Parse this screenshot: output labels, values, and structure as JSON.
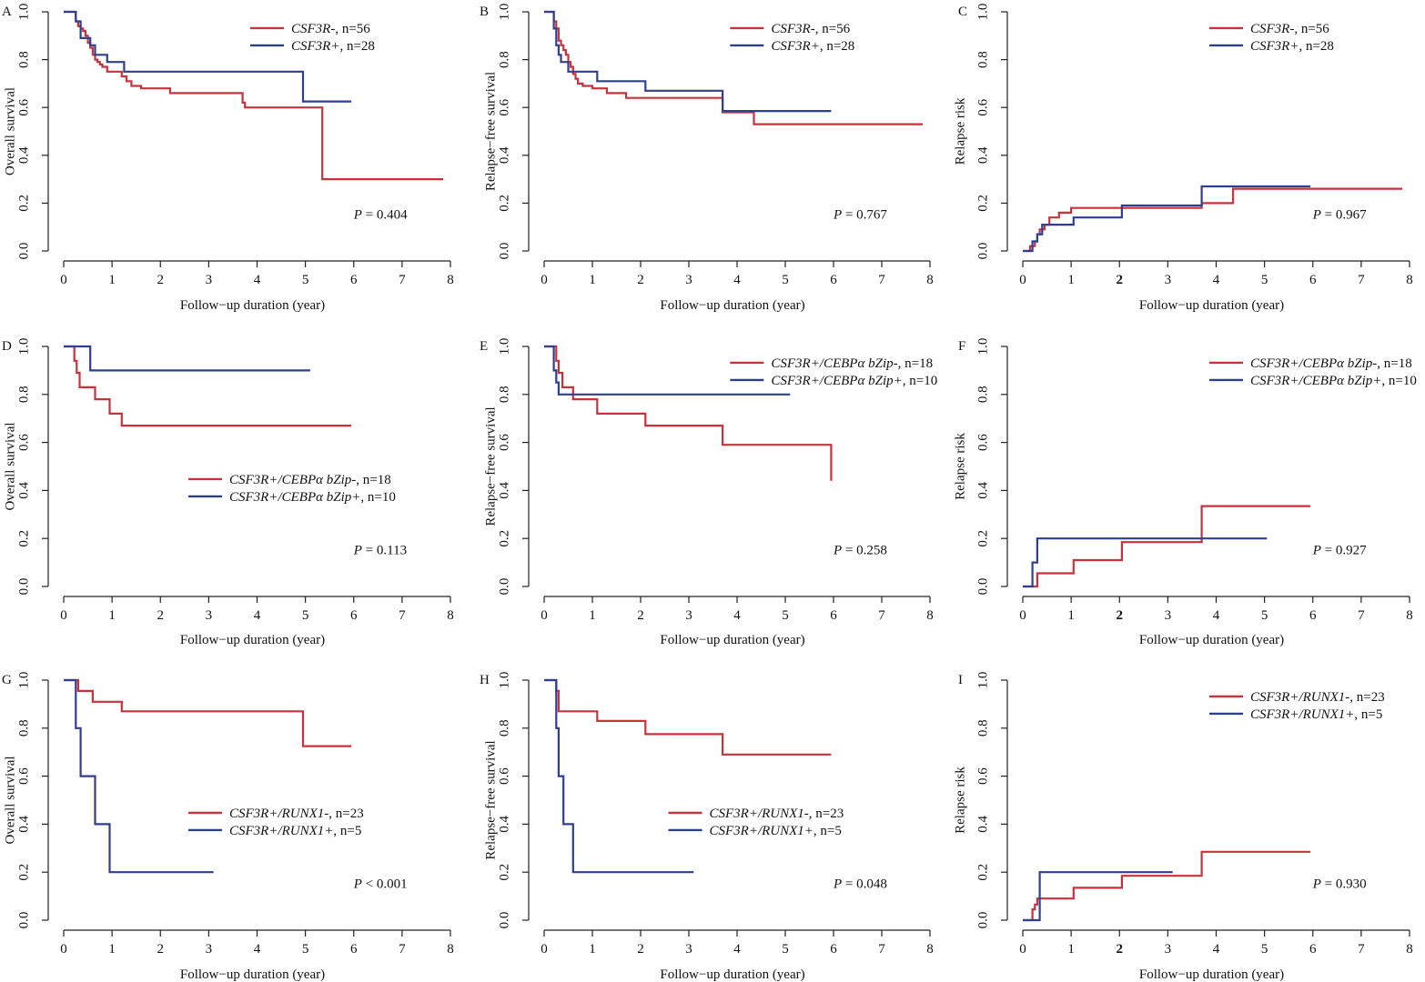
{
  "figure": {
    "colors": {
      "red": "#c8323c",
      "blue": "#2e3f8f",
      "axis": "#222222"
    },
    "xlabel": "Follow−up duration (year)",
    "x_ticks": [
      "0",
      "1",
      "2",
      "3",
      "4",
      "5",
      "6",
      "7",
      "8"
    ],
    "y_ticks": [
      "0.0",
      "0.2",
      "0.4",
      "0.6",
      "0.8",
      "1.0"
    ]
  },
  "chart_data": [
    {
      "panel": "A",
      "type": "line",
      "ylabel": "Overall survival",
      "xlim": [
        0,
        8
      ],
      "ylim": [
        0,
        1
      ],
      "legend_position": "top-right",
      "pvalue": {
        "label": "P",
        "op": " = ",
        "value": "0.404"
      },
      "series": [
        {
          "name": "CSF3R-,",
          "n": "n=56",
          "color": "red",
          "x": [
            0,
            0.25,
            0.3,
            0.35,
            0.4,
            0.45,
            0.5,
            0.55,
            0.6,
            0.65,
            0.7,
            0.75,
            0.8,
            0.9,
            1.2,
            1.3,
            1.4,
            1.6,
            2.2,
            3.7,
            3.75,
            5.35,
            7.85
          ],
          "y": [
            1.0,
            0.96,
            0.94,
            0.93,
            0.92,
            0.9,
            0.87,
            0.85,
            0.82,
            0.8,
            0.79,
            0.78,
            0.77,
            0.75,
            0.73,
            0.71,
            0.69,
            0.68,
            0.66,
            0.62,
            0.6,
            0.3,
            0.3
          ]
        },
        {
          "name": "CSF3R+,",
          "n": "n=28",
          "color": "blue",
          "x": [
            0,
            0.25,
            0.35,
            0.55,
            0.65,
            0.9,
            1.25,
            4.95,
            5.95
          ],
          "y": [
            1.0,
            0.96,
            0.89,
            0.86,
            0.82,
            0.79,
            0.75,
            0.625,
            0.625
          ]
        }
      ]
    },
    {
      "panel": "B",
      "type": "line",
      "ylabel": "Relapse−free survival",
      "xlim": [
        0,
        8
      ],
      "ylim": [
        0,
        1
      ],
      "legend_position": "top-right",
      "pvalue": {
        "label": "P",
        "op": " = ",
        "value": "0.767"
      },
      "series": [
        {
          "name": "CSF3R-,",
          "n": "n=56",
          "color": "red",
          "x": [
            0,
            0.2,
            0.25,
            0.3,
            0.35,
            0.4,
            0.45,
            0.5,
            0.55,
            0.6,
            0.65,
            0.7,
            0.8,
            1.0,
            1.3,
            1.7,
            3.7,
            4.35,
            7.85
          ],
          "y": [
            1.0,
            0.96,
            0.93,
            0.88,
            0.86,
            0.84,
            0.82,
            0.79,
            0.77,
            0.74,
            0.72,
            0.7,
            0.69,
            0.68,
            0.66,
            0.64,
            0.58,
            0.53,
            0.53
          ]
        },
        {
          "name": "CSF3R+,",
          "n": "n=28",
          "color": "blue",
          "x": [
            0,
            0.2,
            0.25,
            0.3,
            0.35,
            0.5,
            0.6,
            1.1,
            2.1,
            3.7,
            5.95
          ],
          "y": [
            1.0,
            0.93,
            0.86,
            0.82,
            0.79,
            0.75,
            0.75,
            0.71,
            0.67,
            0.585,
            0.585
          ]
        }
      ]
    },
    {
      "panel": "C",
      "type": "line",
      "ylabel": "Relapse risk",
      "xlim": [
        0,
        8
      ],
      "ylim": [
        0,
        1
      ],
      "legend_position": "top-right",
      "pvalue": {
        "label": "P",
        "op": " = ",
        "value": "0.967"
      },
      "series": [
        {
          "name": "CSF3R-,",
          "n": "n=56",
          "color": "red",
          "x": [
            0,
            0.15,
            0.25,
            0.3,
            0.35,
            0.45,
            0.55,
            0.75,
            0.9,
            1.0,
            3.7,
            4.35,
            7.85
          ],
          "y": [
            0.0,
            0.02,
            0.04,
            0.07,
            0.09,
            0.11,
            0.14,
            0.16,
            0.16,
            0.18,
            0.2,
            0.26,
            0.26
          ]
        },
        {
          "name": "CSF3R+,",
          "n": "n=28",
          "color": "blue",
          "x": [
            0,
            0.2,
            0.3,
            0.4,
            1.05,
            2.05,
            3.7,
            5.95
          ],
          "y": [
            0.0,
            0.04,
            0.07,
            0.11,
            0.14,
            0.19,
            0.27,
            0.27
          ]
        }
      ]
    },
    {
      "panel": "D",
      "type": "line",
      "ylabel": "Overall survival",
      "xlim": [
        0,
        8
      ],
      "ylim": [
        0,
        1
      ],
      "legend_position": "center-right",
      "pvalue": {
        "label": "P",
        "op": " = ",
        "value": "0.113"
      },
      "series": [
        {
          "name": "CSF3R+/CEBPα bZip-,",
          "n": "n=18",
          "color": "red",
          "x": [
            0,
            0.22,
            0.27,
            0.33,
            0.65,
            0.95,
            1.2,
            5.95
          ],
          "y": [
            1.0,
            0.94,
            0.89,
            0.83,
            0.78,
            0.72,
            0.67,
            0.67
          ]
        },
        {
          "name": "CSF3R+/CEBPα bZip+,",
          "n": "n=10",
          "color": "blue",
          "x": [
            0,
            0.55,
            5.1
          ],
          "y": [
            1.0,
            0.9,
            0.9
          ]
        }
      ]
    },
    {
      "panel": "E",
      "type": "line",
      "ylabel": "Relapse−free survival",
      "xlim": [
        0,
        8
      ],
      "ylim": [
        0,
        1
      ],
      "legend_position": "top-right",
      "pvalue": {
        "label": "P",
        "op": " = ",
        "value": "0.258"
      },
      "series": [
        {
          "name": "CSF3R+/CEBPα bZip-,",
          "n": "n=18",
          "color": "red",
          "x": [
            0,
            0.25,
            0.3,
            0.38,
            0.6,
            1.1,
            2.1,
            3.7,
            5.95
          ],
          "y": [
            1.0,
            0.94,
            0.89,
            0.83,
            0.78,
            0.72,
            0.67,
            0.59,
            0.44
          ]
        },
        {
          "name": "CSF3R+/CEBPα bZip+,",
          "n": "n=10",
          "color": "blue",
          "x": [
            0,
            0.2,
            0.25,
            0.3,
            5.1
          ],
          "y": [
            1.0,
            0.9,
            0.85,
            0.8,
            0.8
          ]
        }
      ]
    },
    {
      "panel": "F",
      "type": "line",
      "ylabel": "Relapse risk",
      "xlim": [
        0,
        8
      ],
      "ylim": [
        0,
        1
      ],
      "legend_position": "top-right",
      "pvalue": {
        "label": "P",
        "op": " = ",
        "value": "0.927"
      },
      "series": [
        {
          "name": "CSF3R+/CEBPα bZip-,",
          "n": "n=18",
          "color": "red",
          "x": [
            0,
            0.3,
            1.05,
            2.05,
            3.7,
            5.95
          ],
          "y": [
            0.0,
            0.055,
            0.11,
            0.185,
            0.335,
            0.335
          ]
        },
        {
          "name": "CSF3R+/CEBPα bZip+,",
          "n": "n=10",
          "color": "blue",
          "x": [
            0,
            0.2,
            0.3,
            5.05
          ],
          "y": [
            0.0,
            0.1,
            0.2,
            0.2
          ]
        }
      ]
    },
    {
      "panel": "G",
      "type": "line",
      "ylabel": "Overall survival",
      "xlim": [
        0,
        8
      ],
      "ylim": [
        0,
        1
      ],
      "legend_position": "center-right",
      "pvalue": {
        "label": "P",
        "op": " < ",
        "value": "0.001"
      },
      "series": [
        {
          "name": "CSF3R+/RUNX1-,",
          "n": "n=23",
          "color": "red",
          "x": [
            0,
            0.3,
            0.6,
            1.2,
            4.95,
            5.95
          ],
          "y": [
            1.0,
            0.955,
            0.91,
            0.87,
            0.725,
            0.725
          ]
        },
        {
          "name": "CSF3R+/RUNX1+,",
          "n": "n=5",
          "color": "blue",
          "x": [
            0,
            0.25,
            0.35,
            0.65,
            0.95,
            3.1
          ],
          "y": [
            1.0,
            0.8,
            0.6,
            0.4,
            0.2,
            0.2
          ]
        }
      ]
    },
    {
      "panel": "H",
      "type": "line",
      "ylabel": "Relapse−free survival",
      "xlim": [
        0,
        8
      ],
      "ylim": [
        0,
        1
      ],
      "legend_position": "center-right",
      "pvalue": {
        "label": "P",
        "op": " = ",
        "value": "0.048"
      },
      "series": [
        {
          "name": "CSF3R+/RUNX1-,",
          "n": "n=23",
          "color": "red",
          "x": [
            0,
            0.25,
            0.3,
            1.1,
            2.1,
            3.7,
            5.95
          ],
          "y": [
            1.0,
            0.955,
            0.87,
            0.83,
            0.775,
            0.69,
            0.69
          ]
        },
        {
          "name": "CSF3R+/RUNX1+,",
          "n": "n=5",
          "color": "blue",
          "x": [
            0,
            0.25,
            0.3,
            0.4,
            0.6,
            3.1
          ],
          "y": [
            1.0,
            0.8,
            0.6,
            0.4,
            0.2,
            0.2
          ]
        }
      ]
    },
    {
      "panel": "I",
      "type": "line",
      "ylabel": "Relapse risk",
      "xlim": [
        0,
        8
      ],
      "ylim": [
        0,
        1
      ],
      "legend_position": "top-right",
      "pvalue": {
        "label": "P",
        "op": " = ",
        "value": "0.930"
      },
      "series": [
        {
          "name": "CSF3R+/RUNX1-,",
          "n": "n=23",
          "color": "red",
          "x": [
            0,
            0.2,
            0.25,
            0.3,
            1.05,
            2.05,
            3.7,
            5.95
          ],
          "y": [
            0.0,
            0.045,
            0.065,
            0.09,
            0.135,
            0.185,
            0.285,
            0.285
          ]
        },
        {
          "name": "CSF3R+/RUNX1+,",
          "n": "n=5",
          "color": "blue",
          "x": [
            0,
            0.35,
            3.1
          ],
          "y": [
            0.0,
            0.2,
            0.2
          ]
        }
      ]
    }
  ]
}
